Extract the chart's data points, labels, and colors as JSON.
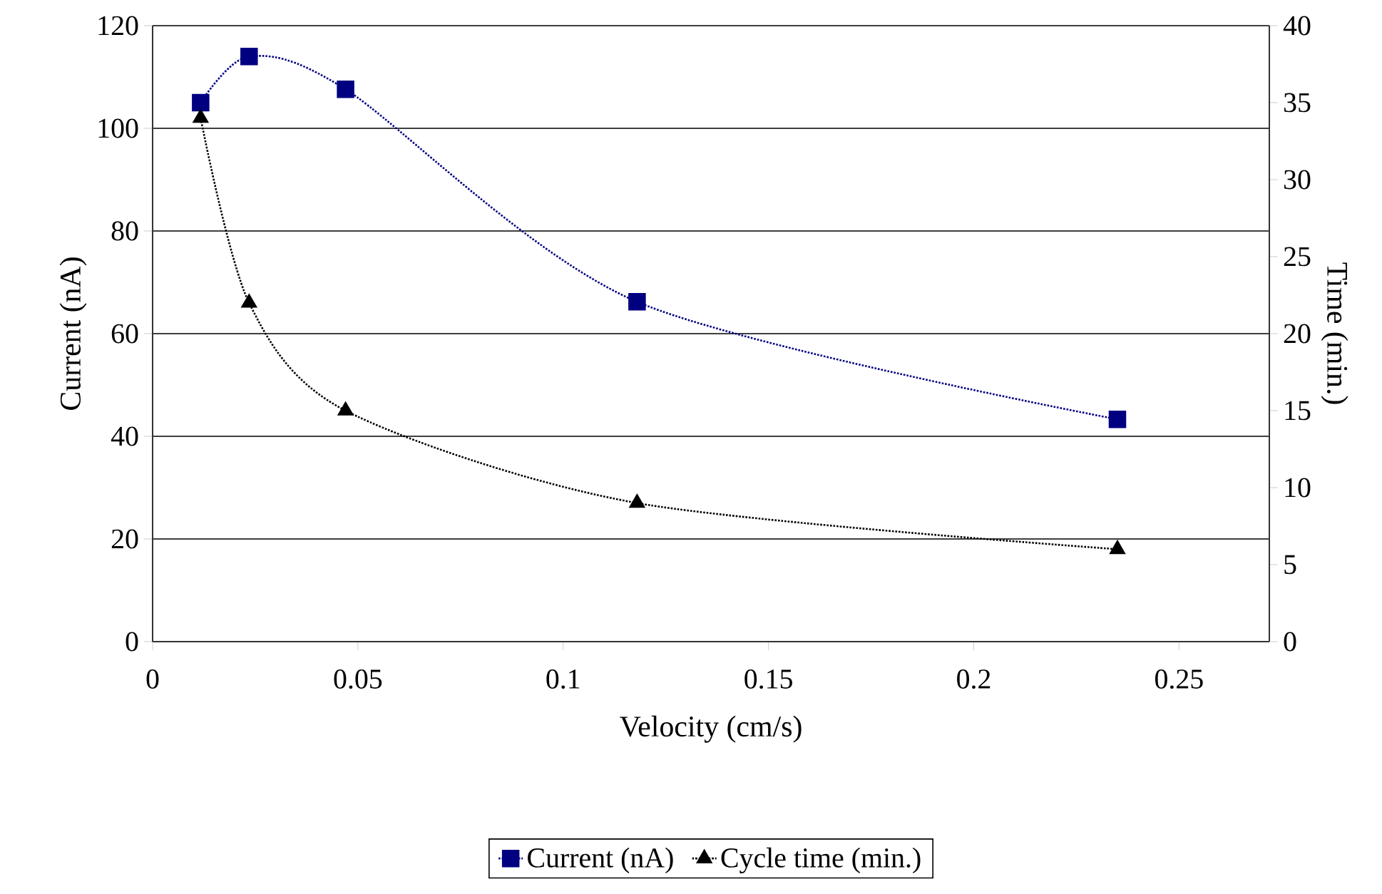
{
  "chart_data": {
    "type": "line",
    "xlabel": "Velocity (cm/s)",
    "ylabel": "Current (nA)",
    "y2label": "Time (min.)",
    "x": [
      0.0117,
      0.0235,
      0.047,
      0.118,
      0.235
    ],
    "series": [
      {
        "name": "Current (nA)",
        "color": "#000080",
        "marker": "square",
        "values": [
          105,
          114,
          107.6,
          66.2,
          43.3
        ]
      },
      {
        "name": "Cycle time (min.)",
        "color": "#000000",
        "marker": "triangle",
        "axis": "y2",
        "values": [
          34,
          22,
          15,
          9,
          6
        ]
      }
    ],
    "xlim": [
      0,
      0.272
    ],
    "xticks": [
      0,
      0.05,
      0.1,
      0.15,
      0.2,
      0.25
    ],
    "ylim": [
      0,
      120
    ],
    "yticks": [
      0,
      20,
      40,
      60,
      80,
      100,
      120
    ],
    "y2lim": [
      0,
      40
    ],
    "y2ticks": [
      0,
      5,
      10,
      15,
      20,
      25,
      30,
      35,
      40
    ],
    "grid": "y",
    "legend": "bottom",
    "line_style": "dotted"
  }
}
